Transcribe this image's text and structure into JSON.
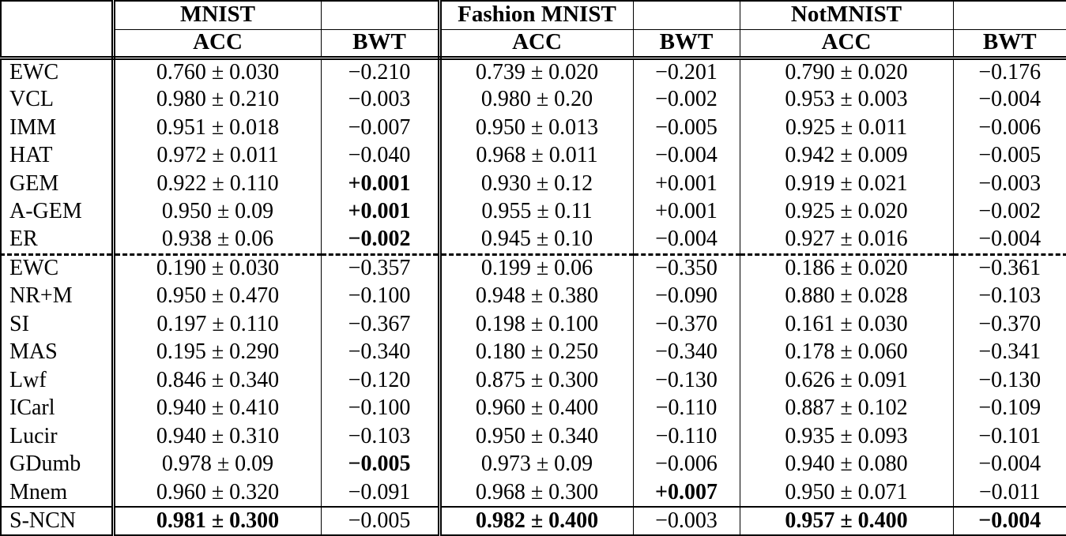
{
  "table": {
    "groups": [
      {
        "label": "MNIST"
      },
      {
        "label": "Fashion MNIST"
      },
      {
        "label": "NotMNIST"
      }
    ],
    "sub_headers": [
      "ACC",
      "BWT"
    ],
    "rows": [
      {
        "method": "EWC",
        "cells": [
          {
            "t": "0.760 ± 0.030"
          },
          {
            "t": "−0.210"
          },
          {
            "t": "0.739 ± 0.020"
          },
          {
            "t": "−0.201"
          },
          {
            "t": "0.790 ± 0.020"
          },
          {
            "t": "−0.176"
          }
        ]
      },
      {
        "method": "VCL",
        "cells": [
          {
            "t": "0.980 ± 0.210"
          },
          {
            "t": "−0.003"
          },
          {
            "t": "0.980 ± 0.20"
          },
          {
            "t": "−0.002"
          },
          {
            "t": "0.953 ± 0.003"
          },
          {
            "t": "−0.004"
          }
        ]
      },
      {
        "method": "IMM",
        "cells": [
          {
            "t": "0.951 ± 0.018"
          },
          {
            "t": "−0.007"
          },
          {
            "t": "0.950 ± 0.013"
          },
          {
            "t": "−0.005"
          },
          {
            "t": "0.925 ± 0.011"
          },
          {
            "t": "−0.006"
          }
        ]
      },
      {
        "method": "HAT",
        "cells": [
          {
            "t": "0.972 ± 0.011"
          },
          {
            "t": "−0.040"
          },
          {
            "t": "0.968 ± 0.011"
          },
          {
            "t": "−0.004"
          },
          {
            "t": "0.942 ± 0.009"
          },
          {
            "t": "−0.005"
          }
        ]
      },
      {
        "method": "GEM",
        "cells": [
          {
            "t": "0.922 ± 0.110"
          },
          {
            "t": "+0.001",
            "b": true
          },
          {
            "t": "0.930 ± 0.12"
          },
          {
            "t": "+0.001"
          },
          {
            "t": "0.919 ± 0.021"
          },
          {
            "t": "−0.003"
          }
        ]
      },
      {
        "method": "A-GEM",
        "cells": [
          {
            "t": "0.950 ± 0.09"
          },
          {
            "t": "+0.001",
            "b": true
          },
          {
            "t": "0.955 ± 0.11"
          },
          {
            "t": "+0.001"
          },
          {
            "t": "0.925 ± 0.020"
          },
          {
            "t": "−0.002"
          }
        ]
      },
      {
        "method": "ER",
        "cells": [
          {
            "t": "0.938 ± 0.06"
          },
          {
            "t": "−0.002",
            "b": true
          },
          {
            "t": "0.945 ± 0.10"
          },
          {
            "t": "−0.004"
          },
          {
            "t": "0.927 ± 0.016"
          },
          {
            "t": "−0.004"
          }
        ]
      },
      {
        "method": "EWC",
        "rule_before": "dashed",
        "cells": [
          {
            "t": "0.190 ± 0.030"
          },
          {
            "t": "−0.357"
          },
          {
            "t": "0.199 ± 0.06"
          },
          {
            "t": "−0.350"
          },
          {
            "t": "0.186 ± 0.020"
          },
          {
            "t": "−0.361"
          }
        ]
      },
      {
        "method": "NR+M",
        "cells": [
          {
            "t": "0.950 ± 0.470"
          },
          {
            "t": "−0.100"
          },
          {
            "t": "0.948 ± 0.380"
          },
          {
            "t": "−0.090"
          },
          {
            "t": "0.880 ± 0.028"
          },
          {
            "t": "−0.103"
          }
        ]
      },
      {
        "method": "SI",
        "cells": [
          {
            "t": "0.197 ± 0.110"
          },
          {
            "t": "−0.367"
          },
          {
            "t": "0.198 ± 0.100"
          },
          {
            "t": "−0.370"
          },
          {
            "t": "0.161 ± 0.030"
          },
          {
            "t": "−0.370"
          }
        ]
      },
      {
        "method": "MAS",
        "cells": [
          {
            "t": "0.195 ± 0.290"
          },
          {
            "t": "−0.340"
          },
          {
            "t": "0.180 ± 0.250"
          },
          {
            "t": "−0.340"
          },
          {
            "t": "0.178 ± 0.060"
          },
          {
            "t": "−0.341"
          }
        ]
      },
      {
        "method": "Lwf",
        "cells": [
          {
            "t": "0.846 ± 0.340"
          },
          {
            "t": "−0.120"
          },
          {
            "t": "0.875 ± 0.300"
          },
          {
            "t": "−0.130"
          },
          {
            "t": "0.626 ± 0.091"
          },
          {
            "t": "−0.130"
          }
        ]
      },
      {
        "method": "ICarl",
        "cells": [
          {
            "t": "0.940 ± 0.410"
          },
          {
            "t": "−0.100"
          },
          {
            "t": "0.960 ± 0.400"
          },
          {
            "t": "−0.110"
          },
          {
            "t": "0.887 ± 0.102"
          },
          {
            "t": "−0.109"
          }
        ]
      },
      {
        "method": "Lucir",
        "cells": [
          {
            "t": "0.940 ± 0.310"
          },
          {
            "t": "−0.103"
          },
          {
            "t": "0.950 ± 0.340"
          },
          {
            "t": "−0.110"
          },
          {
            "t": "0.935 ± 0.093"
          },
          {
            "t": "−0.101"
          }
        ]
      },
      {
        "method": "GDumb",
        "cells": [
          {
            "t": "0.978 ± 0.09"
          },
          {
            "t": "−0.005",
            "b": true
          },
          {
            "t": "0.973 ± 0.09"
          },
          {
            "t": "−0.006"
          },
          {
            "t": "0.940 ± 0.080"
          },
          {
            "t": "−0.004"
          }
        ]
      },
      {
        "method": "Mnem",
        "cells": [
          {
            "t": "0.960 ± 0.320"
          },
          {
            "t": "−0.091"
          },
          {
            "t": "0.968 ± 0.300"
          },
          {
            "t": "+0.007",
            "b": true
          },
          {
            "t": "0.950 ± 0.071"
          },
          {
            "t": "−0.011"
          }
        ]
      },
      {
        "method": "S-NCN",
        "rule_before": "solid",
        "cells": [
          {
            "t": "0.981 ± 0.300",
            "b": true
          },
          {
            "t": "−0.005"
          },
          {
            "t": "0.982 ± 0.400",
            "b": true
          },
          {
            "t": "−0.003"
          },
          {
            "t": "0.957 ± 0.400",
            "b": true
          },
          {
            "t": "−0.004",
            "b": true
          }
        ]
      }
    ]
  }
}
